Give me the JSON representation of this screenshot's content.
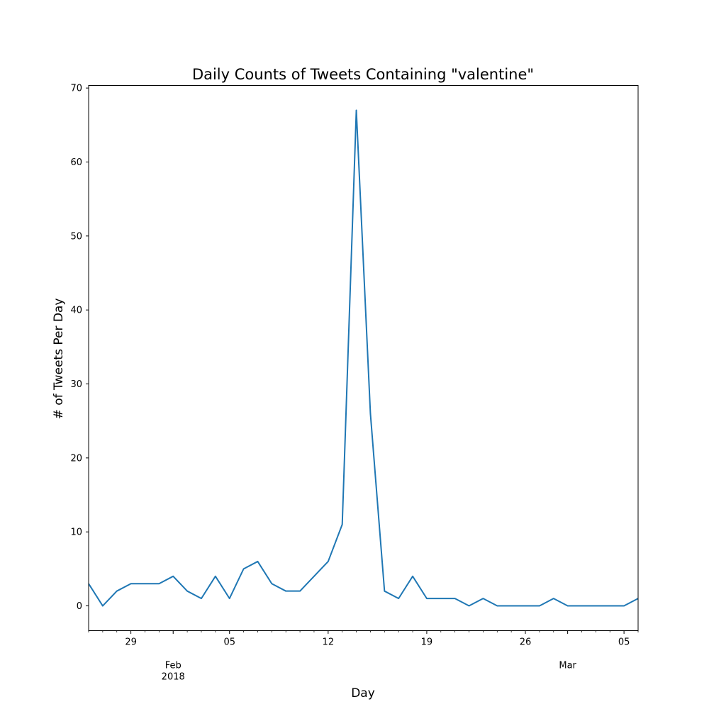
{
  "chart_data": {
    "type": "line",
    "title": "Daily Counts of Tweets Containing \"valentine\"",
    "xlabel": "Day",
    "ylabel": "# of Tweets Per Day",
    "x_start": "2018-01-26",
    "x_end": "2018-03-06",
    "xlim": [
      "2018-01-26",
      "2018-03-06"
    ],
    "ylim": [
      -3.35,
      70.35
    ],
    "grid": false,
    "color": "#1f77b4",
    "y_ticks": [
      0,
      10,
      20,
      30,
      40,
      50,
      60,
      70
    ],
    "x_ticks": [
      {
        "date": "2018-01-29",
        "label": "29",
        "sub": ""
      },
      {
        "date": "2018-02-01",
        "label": "",
        "sub": "Feb\n2018"
      },
      {
        "date": "2018-02-05",
        "label": "05",
        "sub": ""
      },
      {
        "date": "2018-02-12",
        "label": "12",
        "sub": ""
      },
      {
        "date": "2018-02-19",
        "label": "19",
        "sub": ""
      },
      {
        "date": "2018-02-26",
        "label": "26",
        "sub": ""
      },
      {
        "date": "2018-03-01",
        "label": "",
        "sub": "Mar"
      },
      {
        "date": "2018-03-05",
        "label": "05",
        "sub": ""
      }
    ],
    "x": [
      "2018-01-26",
      "2018-01-27",
      "2018-01-28",
      "2018-01-29",
      "2018-01-30",
      "2018-01-31",
      "2018-02-01",
      "2018-02-02",
      "2018-02-03",
      "2018-02-04",
      "2018-02-05",
      "2018-02-06",
      "2018-02-07",
      "2018-02-08",
      "2018-02-09",
      "2018-02-10",
      "2018-02-11",
      "2018-02-12",
      "2018-02-13",
      "2018-02-14",
      "2018-02-15",
      "2018-02-16",
      "2018-02-17",
      "2018-02-18",
      "2018-02-19",
      "2018-02-20",
      "2018-02-21",
      "2018-02-22",
      "2018-02-23",
      "2018-02-24",
      "2018-02-25",
      "2018-02-26",
      "2018-02-27",
      "2018-02-28",
      "2018-03-01",
      "2018-03-02",
      "2018-03-03",
      "2018-03-04",
      "2018-03-05",
      "2018-03-06"
    ],
    "y": [
      3,
      0,
      2,
      3,
      3,
      3,
      4,
      2,
      1,
      4,
      1,
      5,
      6,
      3,
      2,
      2,
      4,
      6,
      11,
      67,
      26,
      2,
      1,
      4,
      1,
      1,
      1,
      0,
      1,
      0,
      0,
      0,
      0,
      1,
      0,
      0,
      0,
      0,
      0,
      1
    ]
  }
}
